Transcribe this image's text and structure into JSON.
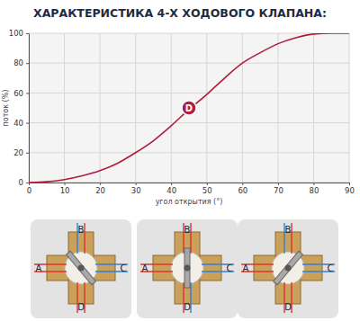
{
  "chart_data": {
    "type": "line",
    "title": "ХАРАКТЕРИСТИКА 4-Х ХОДОВОГО КЛАПАНА:",
    "x_label": "угол открытия (°)",
    "y_label": "поток (%)",
    "x": [
      0,
      5,
      10,
      15,
      20,
      25,
      30,
      35,
      40,
      45,
      50,
      55,
      60,
      65,
      70,
      75,
      80,
      85,
      90
    ],
    "values": [
      0,
      0.5,
      2,
      4.5,
      8,
      13,
      20,
      28,
      38,
      49,
      59,
      70,
      80,
      87,
      93,
      97,
      99.5,
      100,
      100
    ],
    "color": "#b01c3c",
    "xlim": [
      0,
      90
    ],
    "xticks": [
      0,
      10,
      20,
      30,
      40,
      50,
      60,
      70,
      80,
      90
    ],
    "ylim": [
      0,
      100
    ],
    "yticks": [
      0,
      20,
      40,
      60,
      80,
      100
    ],
    "grid": true,
    "annotations": [
      {
        "text": "D",
        "x": 45,
        "y": 50
      }
    ]
  },
  "valve_diagrams": [
    {
      "ports": [
        "A",
        "B",
        "C",
        "D"
      ]
    },
    {
      "ports": [
        "A",
        "B",
        "C",
        "D"
      ]
    },
    {
      "ports": [
        "A",
        "B",
        "C",
        "D"
      ]
    }
  ]
}
